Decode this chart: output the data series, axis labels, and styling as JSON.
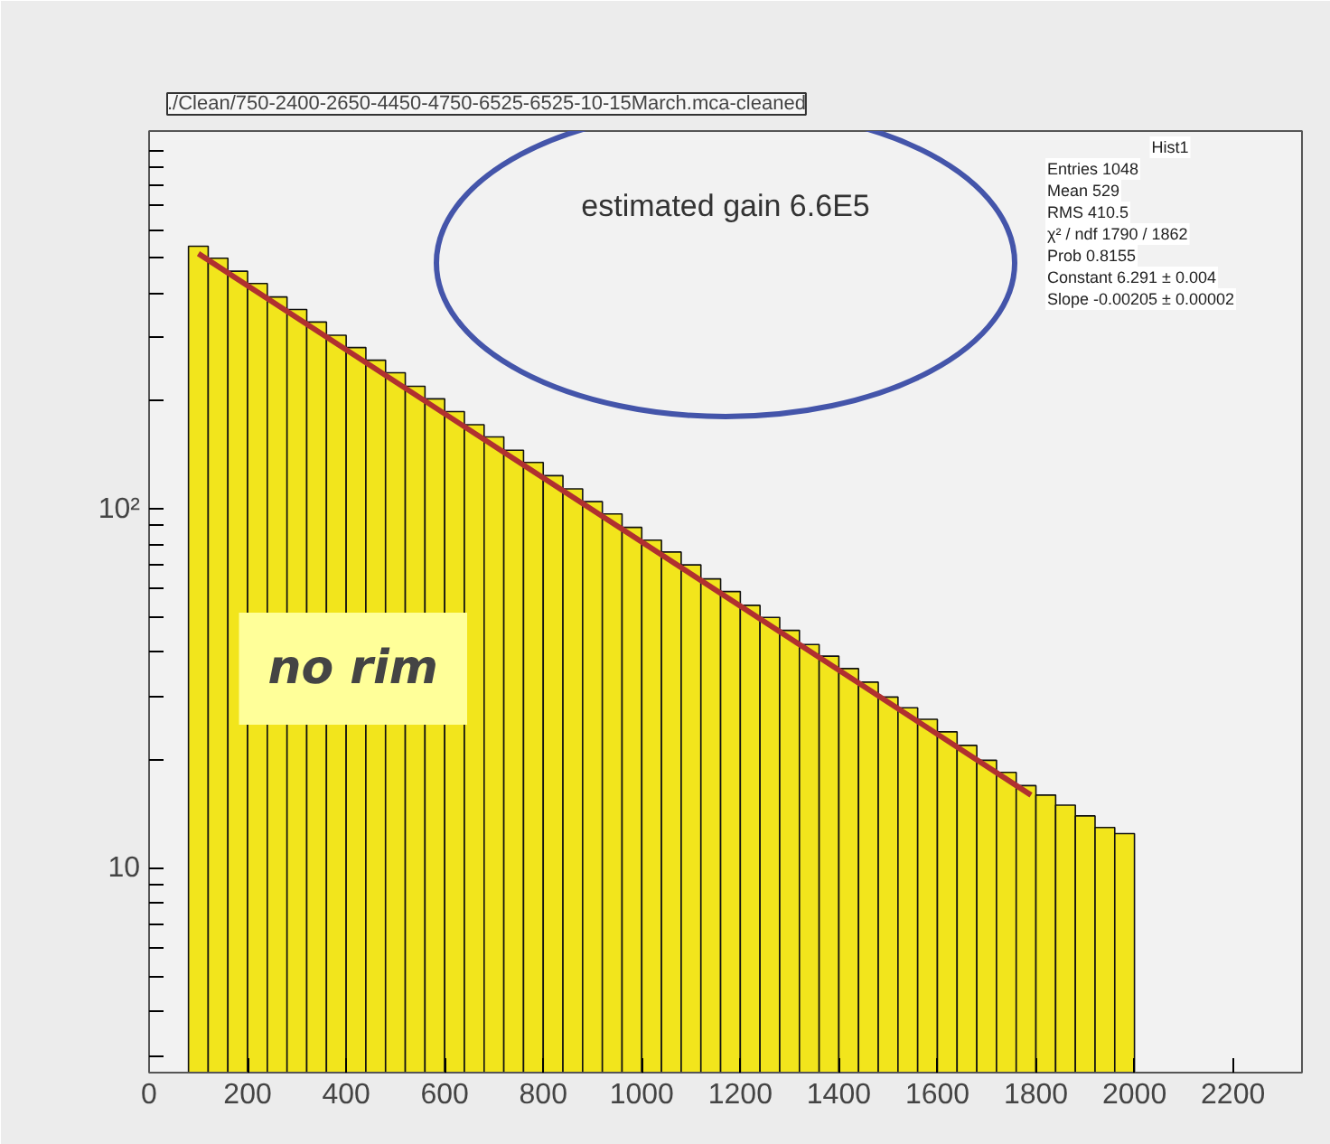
{
  "chart_data": {
    "type": "histogram",
    "title": "./Clean/750-2400-2650-4450-4750-6525-6525-10-15March.mca-cleaned",
    "bins": [
      80,
      120,
      160,
      200,
      240,
      280,
      320,
      360,
      400,
      440,
      480,
      520,
      560,
      600,
      640,
      680,
      720,
      760,
      800,
      840,
      880,
      920,
      960,
      1000,
      1040,
      1080,
      1120,
      1160,
      1200,
      1240,
      1280,
      1320,
      1360,
      1400,
      1440,
      1480,
      1520,
      1560,
      1600,
      1640,
      1680,
      1720,
      1760,
      1800,
      1840,
      1880,
      1920,
      1960,
      2000
    ],
    "series": [
      {
        "color": "#f2e51c",
        "values": [
          540,
          500,
          460,
          425,
          390,
          360,
          332,
          305,
          282,
          260,
          240,
          220,
          203,
          187,
          172,
          159,
          146,
          135,
          124,
          114,
          105,
          97,
          89,
          82,
          76,
          70,
          64,
          59,
          54,
          50,
          46,
          42,
          39,
          36,
          33,
          30,
          28,
          26,
          24,
          22,
          20,
          18.5,
          17,
          16,
          15,
          14,
          13,
          12.5
        ]
      },
      {
        "type": "line",
        "color": "#b03030",
        "x": [
          100,
          1790
        ],
        "values": [
          515,
          16
        ]
      }
    ],
    "xlim": [
      0,
      2340
    ],
    "ylim": [
      2.7,
      1130
    ],
    "xticks": [
      0,
      200,
      400,
      600,
      800,
      1000,
      1200,
      1400,
      1600,
      1800,
      2000,
      2200
    ],
    "yticks": [
      {
        "value": 3,
        "label": null
      },
      {
        "value": 4,
        "label": null
      },
      {
        "value": 5,
        "label": null
      },
      {
        "value": 6,
        "label": null
      },
      {
        "value": 7,
        "label": null
      },
      {
        "value": 8,
        "label": null
      },
      {
        "value": 9,
        "label": null
      },
      10,
      {
        "value": 20,
        "label": null
      },
      {
        "value": 30,
        "label": null
      },
      {
        "value": 40,
        "label": null
      },
      {
        "value": 50,
        "label": null
      },
      {
        "value": 60,
        "label": null
      },
      {
        "value": 70,
        "label": null
      },
      {
        "value": 80,
        "label": null
      },
      {
        "value": 90,
        "label": null
      },
      {
        "value": 100,
        "label": "10²"
      },
      {
        "value": 200,
        "label": null
      },
      {
        "value": 300,
        "label": null
      },
      {
        "value": 400,
        "label": null
      },
      {
        "value": 500,
        "label": null
      },
      {
        "value": 600,
        "label": null
      },
      {
        "value": 700,
        "label": null
      },
      {
        "value": 800,
        "label": null
      },
      {
        "value": 900,
        "label": null
      },
      {
        "value": 1000,
        "label": null
      }
    ],
    "log": "y",
    "grid": false,
    "annotations": [
      "estimated gain 6.6E5",
      {
        "text": "no rim",
        "x": 414,
        "y": 36
      },
      "Hist1",
      "Entries 1048",
      "Mean 529",
      "RMS 410.5",
      "χ² / ndf 1790 / 1862",
      "Prob 0.8155",
      "Constant 6.291 ± 0.004",
      "Slope -0.00205 ± 0.00002"
    ]
  }
}
